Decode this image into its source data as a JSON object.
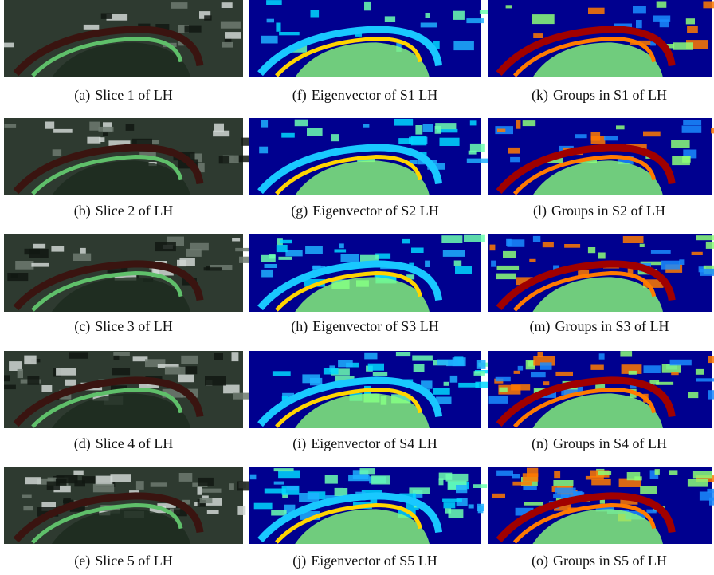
{
  "figure": {
    "rows": [
      [
        {
          "label": "(a)",
          "caption": "Slice 1 of LH"
        },
        {
          "label": "(f)",
          "caption": "Eigenvector of S1 LH"
        },
        {
          "label": "(k)",
          "caption": "Groups in S1 of LH"
        }
      ],
      [
        {
          "label": "(b)",
          "caption": "Slice 2 of LH"
        },
        {
          "label": "(g)",
          "caption": "Eigenvector of S2 LH"
        },
        {
          "label": "(l)",
          "caption": "Groups in S2 of LH"
        }
      ],
      [
        {
          "label": "(c)",
          "caption": "Slice 3 of LH"
        },
        {
          "label": "(h)",
          "caption": "Eigenvector of S3 LH"
        },
        {
          "label": "(m)",
          "caption": "Groups in S3 of LH"
        }
      ],
      [
        {
          "label": "(d)",
          "caption": "Slice 4 of LH"
        },
        {
          "label": "(i)",
          "caption": "Eigenvector of S4 LH"
        },
        {
          "label": "(n)",
          "caption": "Groups in S4 of LH"
        }
      ],
      [
        {
          "label": "(e)",
          "caption": "Slice 5 of LH"
        },
        {
          "label": "(j)",
          "caption": "Eigenvector of S5 LH"
        },
        {
          "label": "(o)",
          "caption": "Groups in S5 of LH"
        }
      ]
    ]
  }
}
